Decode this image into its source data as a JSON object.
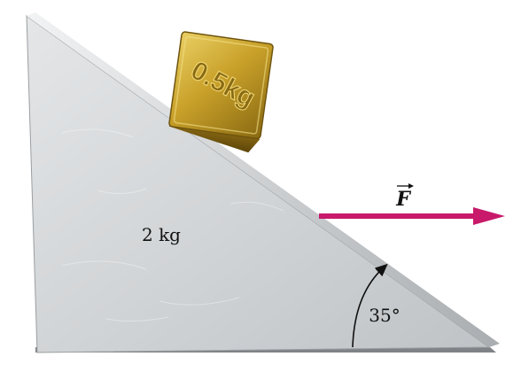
{
  "block": {
    "label": "0.5kg",
    "color": "#c8a52a"
  },
  "wedge": {
    "mass_label": "2 kg",
    "color": "#cfd2d4"
  },
  "force": {
    "symbol": "F",
    "color": "#c8196a"
  },
  "angle": {
    "label": "35°"
  }
}
